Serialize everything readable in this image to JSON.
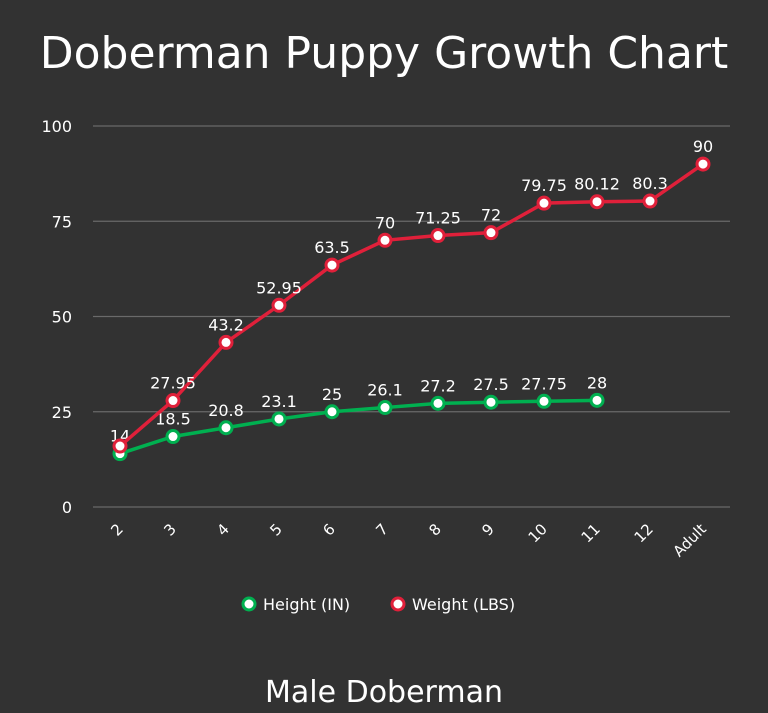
{
  "chart_data": {
    "type": "line",
    "title": "Doberman Puppy Growth Chart",
    "subtitle": "Male Doberman",
    "categories": [
      "2",
      "3",
      "4",
      "5",
      "6",
      "7",
      "8",
      "9",
      "10",
      "11",
      "12",
      "Adult"
    ],
    "ylim": [
      0,
      100
    ],
    "yticks": [
      0,
      25,
      50,
      75,
      100
    ],
    "grid": true,
    "legend": "bottom",
    "series": [
      {
        "name": "Height (IN)",
        "color": "#00b050",
        "values": [
          14,
          18.5,
          20.8,
          23.1,
          25,
          26.1,
          27.2,
          27.5,
          27.75,
          28,
          null,
          null
        ],
        "labels": [
          "14",
          "18.5",
          "20.8",
          "23.1",
          "25",
          "26.1",
          "27.2",
          "27.5",
          "27.75",
          "28",
          null,
          null
        ]
      },
      {
        "name": "Weight (LBS)",
        "color": "#e0203a",
        "values": [
          16,
          27.95,
          43.2,
          52.95,
          63.5,
          70,
          71.25,
          72,
          79.75,
          80.12,
          80.3,
          90
        ],
        "labels": [
          null,
          "27.95",
          "43.2",
          "52.95",
          "63.5",
          "70",
          "71.25",
          "72",
          "79.75",
          "80.12",
          "80.3",
          "90"
        ]
      }
    ]
  }
}
